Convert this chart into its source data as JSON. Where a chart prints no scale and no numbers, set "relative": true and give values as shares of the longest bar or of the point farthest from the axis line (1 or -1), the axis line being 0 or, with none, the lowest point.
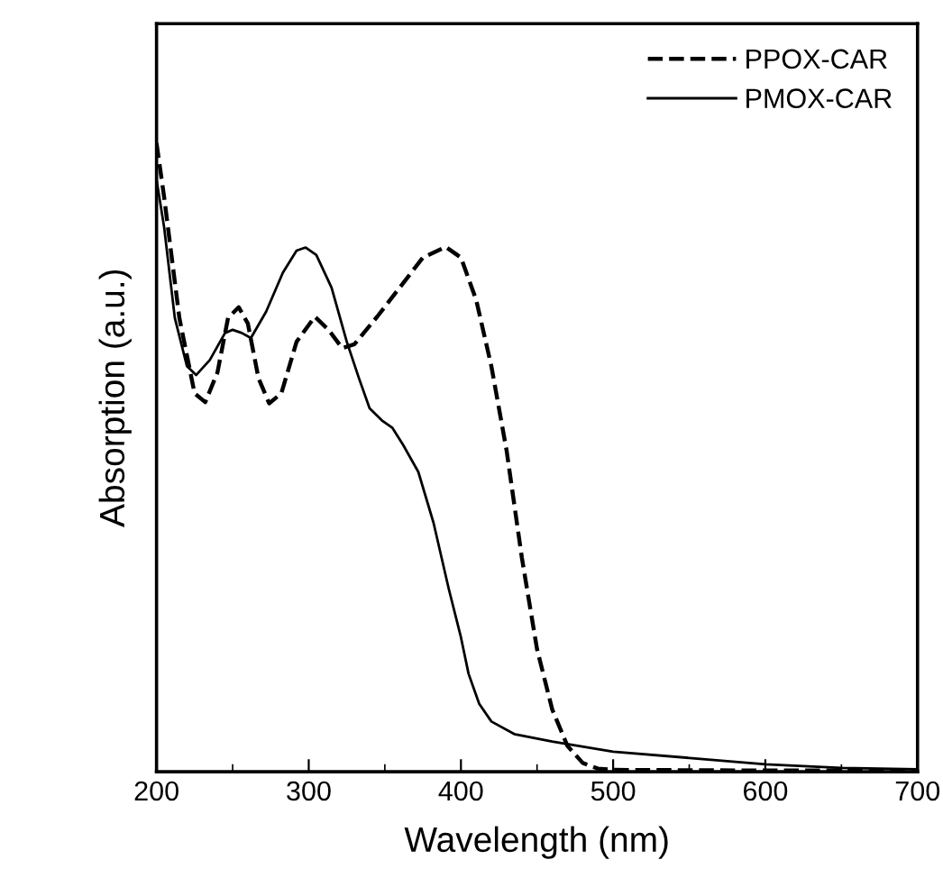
{
  "chart_data": {
    "type": "line",
    "relative": true,
    "xlabel": "Wavelength (nm)",
    "ylabel": "Absorption (a.u.)",
    "xlim": [
      200,
      700
    ],
    "xticks": [
      200,
      300,
      400,
      500,
      600,
      700
    ],
    "legend": "top right",
    "grid": false,
    "series": [
      {
        "name": "PPOX-CAR",
        "color": "#000000",
        "line_style": "dashed",
        "x": [
          200,
          205,
          215,
          225,
          232,
          240,
          247,
          254,
          260,
          267,
          274,
          282,
          292,
          304,
          313,
          322,
          330,
          345,
          360,
          375,
          390,
          400,
          410,
          420,
          430,
          440,
          450,
          460,
          470,
          480,
          490,
          500,
          600,
          700
        ],
        "values": [
          1.0,
          0.914,
          0.722,
          0.602,
          0.588,
          0.635,
          0.722,
          0.739,
          0.713,
          0.626,
          0.586,
          0.602,
          0.684,
          0.724,
          0.703,
          0.674,
          0.68,
          0.724,
          0.771,
          0.818,
          0.835,
          0.818,
          0.751,
          0.645,
          0.511,
          0.341,
          0.195,
          0.099,
          0.041,
          0.014,
          0.005,
          0.003,
          0.002,
          0.002
        ]
      },
      {
        "name": "PMOX-CAR",
        "color": "#000000",
        "line_style": "solid",
        "x": [
          200,
          205,
          212,
          220,
          226,
          235,
          245,
          250,
          256,
          262,
          272,
          283,
          292,
          298,
          305,
          315,
          325,
          333,
          340,
          348,
          355,
          362,
          372,
          382,
          392,
          400,
          405,
          412,
          420,
          435,
          460,
          500,
          550,
          600,
          650,
          700
        ],
        "values": [
          0.942,
          0.866,
          0.722,
          0.645,
          0.631,
          0.655,
          0.698,
          0.703,
          0.698,
          0.69,
          0.732,
          0.794,
          0.829,
          0.834,
          0.822,
          0.77,
          0.684,
          0.626,
          0.578,
          0.559,
          0.547,
          0.52,
          0.477,
          0.396,
          0.291,
          0.214,
          0.156,
          0.108,
          0.08,
          0.06,
          0.048,
          0.032,
          0.022,
          0.012,
          0.006,
          0.004
        ]
      }
    ]
  }
}
